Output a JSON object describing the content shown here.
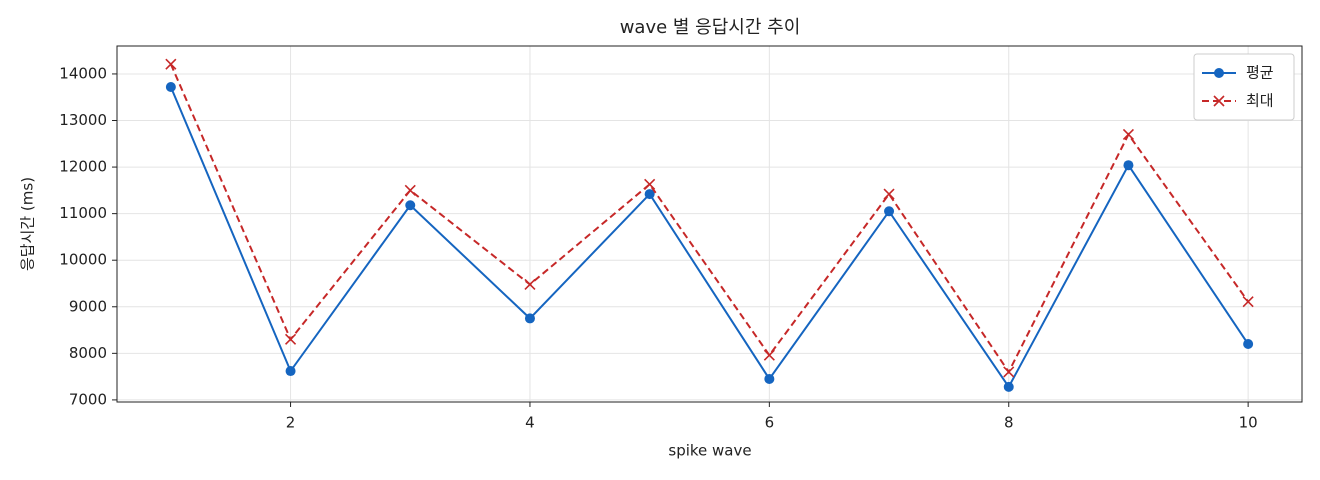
{
  "chart_data": {
    "type": "line",
    "title": "wave 별 응답시간 추이",
    "x_label": "spike wave",
    "y_label": "응답시간 (ms)",
    "x": [
      1,
      2,
      3,
      4,
      5,
      6,
      7,
      8,
      9,
      10
    ],
    "series": [
      {
        "name": "평균",
        "color": "#1565c0",
        "marker": "circle",
        "dash": "solid",
        "values": [
          13720,
          7620,
          11180,
          8750,
          11420,
          7450,
          11050,
          7280,
          12040,
          8200
        ]
      },
      {
        "name": "최대",
        "color": "#c62828",
        "marker": "x",
        "dash": "dashed",
        "values": [
          14210,
          8300,
          11500,
          9480,
          11630,
          7960,
          11420,
          7600,
          12700,
          9110
        ]
      }
    ],
    "xlim": [
      0.55,
      10.45
    ],
    "ylim": [
      6955,
      14600
    ],
    "xticks": [
      2,
      4,
      6,
      8,
      10
    ],
    "yticks": [
      7000,
      8000,
      9000,
      10000,
      11000,
      12000,
      13000,
      14000
    ],
    "grid": true,
    "legend": "upper right"
  }
}
